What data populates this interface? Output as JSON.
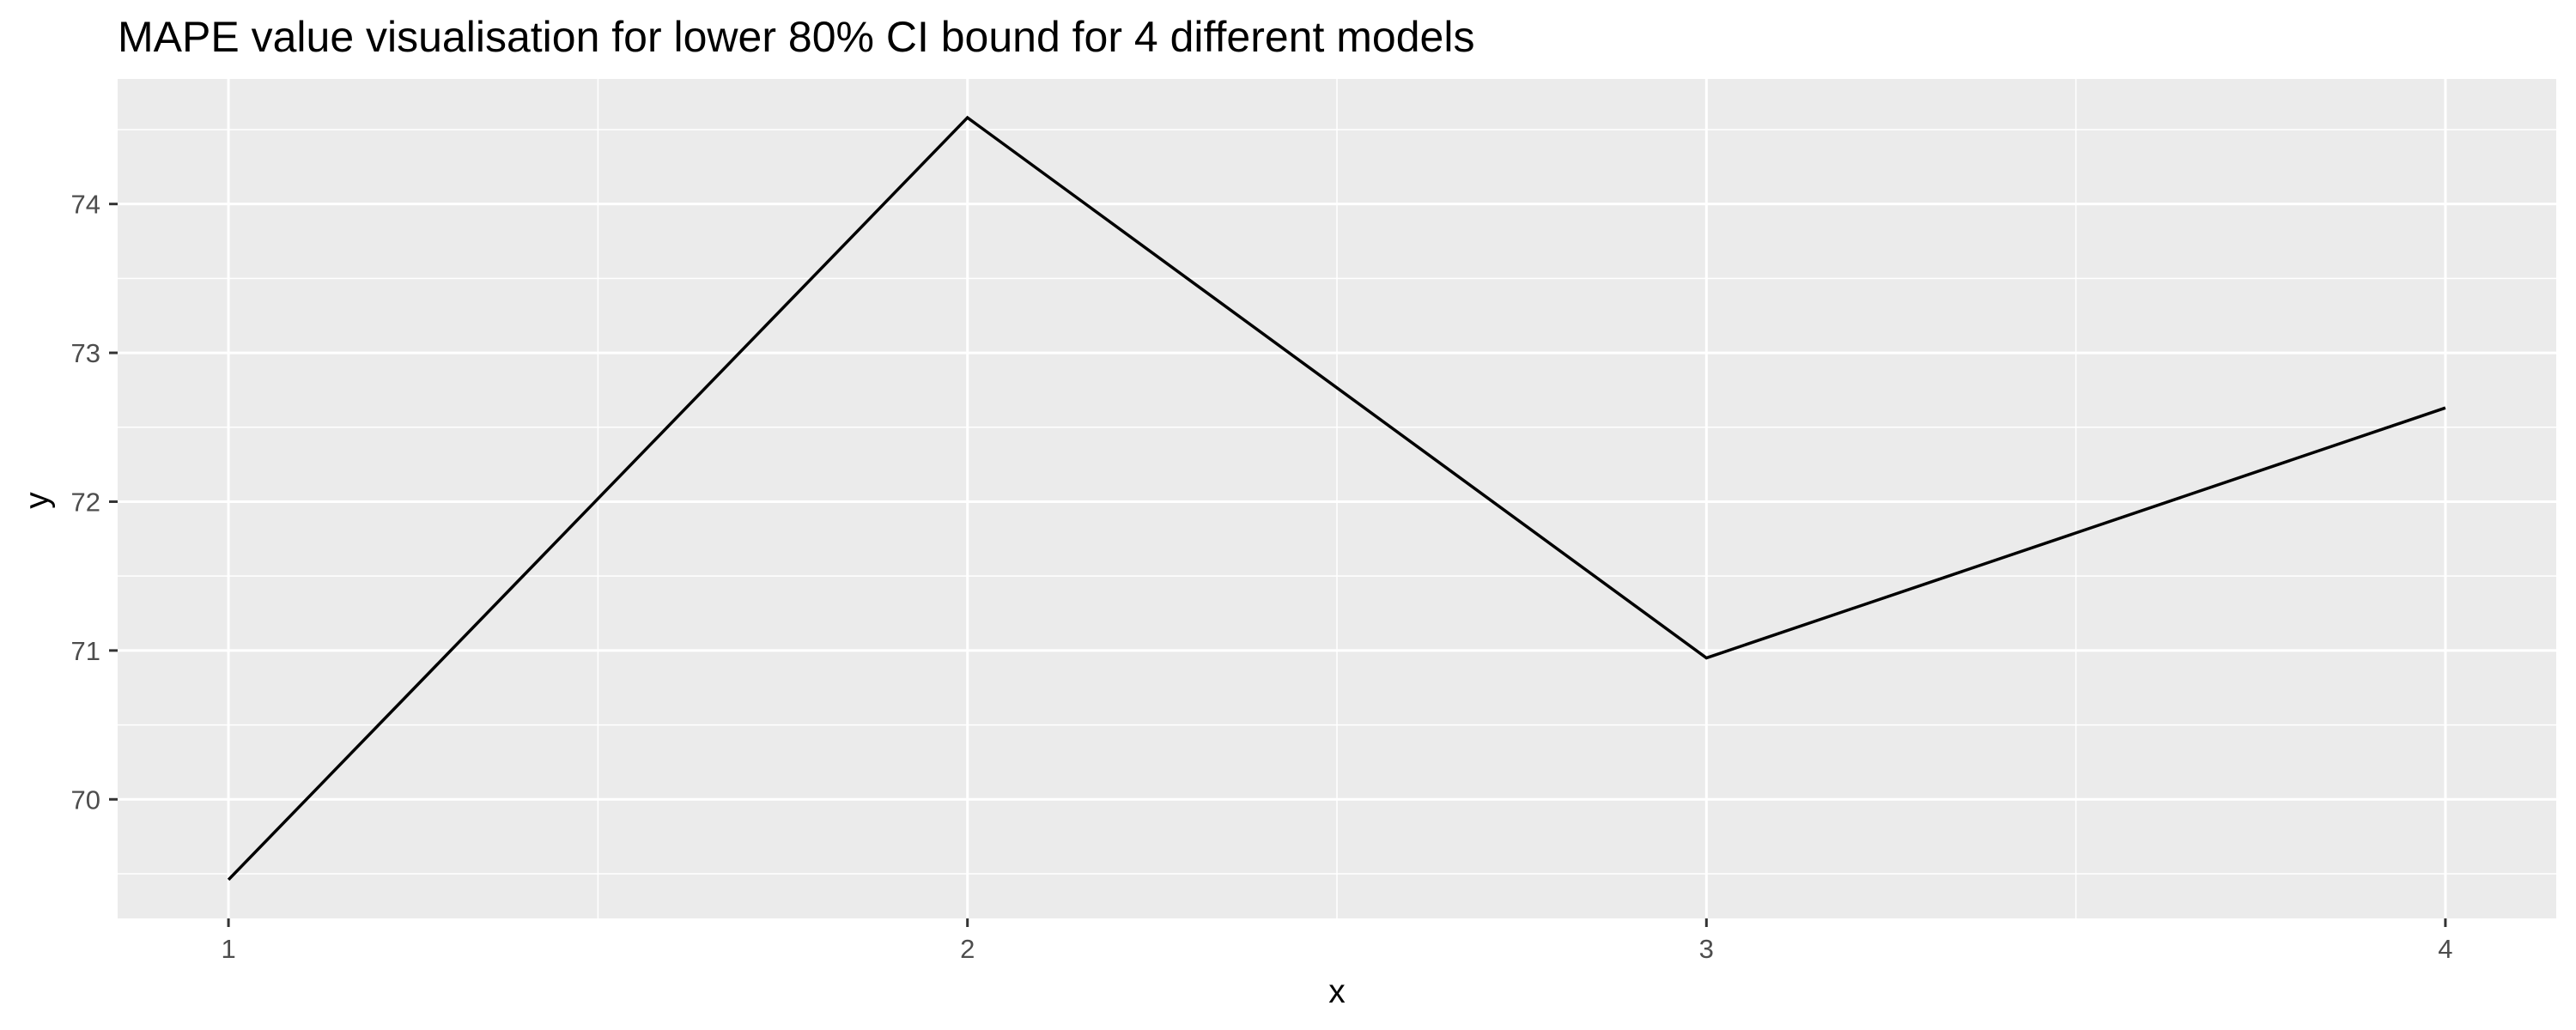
{
  "chart_data": {
    "type": "line",
    "title": "MAPE value visualisation for lower 80% CI bound for 4 different models",
    "xlabel": "x",
    "ylabel": "y",
    "x": [
      1,
      2,
      3,
      4
    ],
    "series": [
      {
        "values": [
          69.46,
          74.58,
          70.95,
          72.63
        ]
      }
    ],
    "xticks": [
      1,
      2,
      3,
      4
    ],
    "yticks": [
      70,
      71,
      72,
      73,
      74
    ],
    "xlim": [
      0.85,
      4.15
    ],
    "ylim": [
      69.2,
      74.84
    ],
    "grid": true,
    "colors": {
      "panel": "#ebebeb",
      "grid": "#ffffff",
      "line": "#000000",
      "tick_text": "#4d4d4d",
      "tick_mark": "#333333"
    }
  }
}
